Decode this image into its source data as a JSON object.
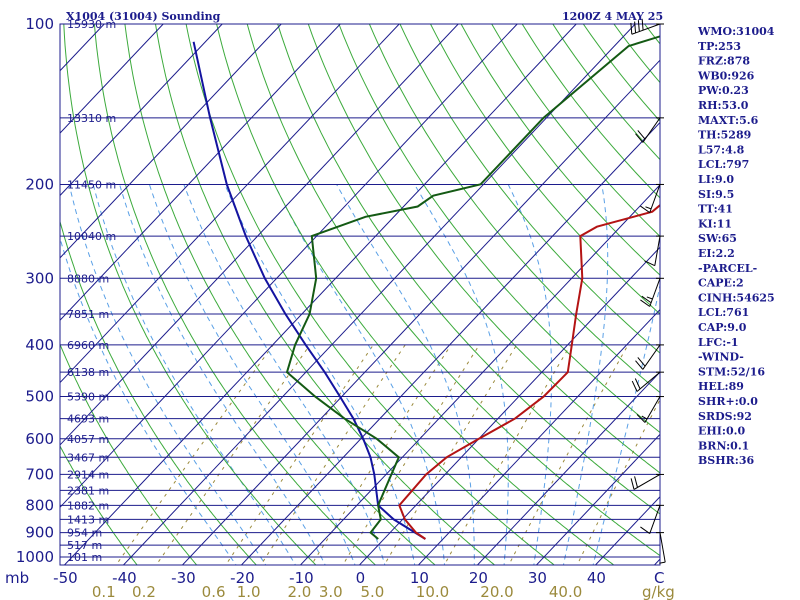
{
  "header": {
    "station_title": "X1004 (31004) Sounding",
    "time_label": "1200Z  4 MAY 25"
  },
  "colors": {
    "frame": "#1c1c8c",
    "isotherm": "#1c1c8c",
    "dry_adiabat": "#3caa3c",
    "moist_adiabat": "#5aa0e6",
    "mixing_ratio": "#9b8a3c",
    "temperature": "#b41414",
    "dewpoint": "#145a14",
    "parcel": "#1414a0",
    "wind": "#000000"
  },
  "chart_data": {
    "type": "skew-t log-p sounding",
    "pressure_axis": {
      "unit": "mb",
      "ticks": [
        100,
        200,
        300,
        400,
        500,
        600,
        700,
        800,
        900,
        1000
      ],
      "range": [
        1050,
        100
      ],
      "scale": "log"
    },
    "temperature_axis": {
      "unit": "C",
      "ticks": [
        -50,
        -40,
        -30,
        -20,
        -10,
        0,
        10,
        20,
        30,
        40
      ],
      "tick_labels": [
        "-50",
        "-40",
        "-30",
        "-20",
        "-10",
        "0",
        "10",
        "20",
        "30",
        "40"
      ],
      "unit_label": "C"
    },
    "mixing_ratio_axis": {
      "unit": "g/kg",
      "labels": [
        "0.1",
        "0.2",
        "0.6",
        "1.0",
        "2.0",
        "3.0",
        "5.0",
        "10.0",
        "20.0",
        "40.0"
      ],
      "values": [
        0.1,
        0.2,
        0.6,
        1.0,
        2.0,
        3.0,
        5.0,
        10.0,
        20.0,
        40.0
      ]
    },
    "height_labels": [
      {
        "p": 100,
        "text": "15930 m"
      },
      {
        "p": 150,
        "text": "13310 m"
      },
      {
        "p": 200,
        "text": "11450 m"
      },
      {
        "p": 250,
        "text": "10040 m"
      },
      {
        "p": 300,
        "text": "8880 m"
      },
      {
        "p": 350,
        "text": "7851 m"
      },
      {
        "p": 400,
        "text": "6960 m"
      },
      {
        "p": 450,
        "text": "6138 m"
      },
      {
        "p": 500,
        "text": "5390 m"
      },
      {
        "p": 550,
        "text": "4693 m"
      },
      {
        "p": 600,
        "text": "4057 m"
      },
      {
        "p": 650,
        "text": "3467 m"
      },
      {
        "p": 700,
        "text": "2914 m"
      },
      {
        "p": 750,
        "text": "2381 m"
      },
      {
        "p": 800,
        "text": "1882 m"
      },
      {
        "p": 850,
        "text": "1413 m"
      },
      {
        "p": 900,
        "text": "954 m"
      },
      {
        "p": 950,
        "text": "517 m"
      },
      {
        "p": 1000,
        "text": "101 m"
      }
    ],
    "temperature": [
      {
        "p": 925,
        "t": 7.0
      },
      {
        "p": 900,
        "t": 4.4
      },
      {
        "p": 850,
        "t": 0.4
      },
      {
        "p": 800,
        "t": -2.8
      },
      {
        "p": 700,
        "t": -3.2
      },
      {
        "p": 650,
        "t": -2.5
      },
      {
        "p": 600,
        "t": 0.0
      },
      {
        "p": 550,
        "t": 2.9
      },
      {
        "p": 500,
        "t": 4.2
      },
      {
        "p": 450,
        "t": 4.4
      },
      {
        "p": 400,
        "t": 0.7
      },
      {
        "p": 350,
        "t": -3.5
      },
      {
        "p": 300,
        "t": -8.2
      },
      {
        "p": 250,
        "t": -15.3
      },
      {
        "p": 240,
        "t": -14.0
      },
      {
        "p": 225,
        "t": -7.0
      },
      {
        "p": 215,
        "t": -6.6
      },
      {
        "p": 209,
        "t": -5.2
      },
      {
        "p": 200,
        "t": -2.2
      },
      {
        "p": 150,
        "t": 7.1
      },
      {
        "p": 100,
        "t": 24.5
      }
    ],
    "dewpoint": [
      {
        "p": 925,
        "t": -1.0
      },
      {
        "p": 900,
        "t": -3.3
      },
      {
        "p": 850,
        "t": -3.7
      },
      {
        "p": 800,
        "t": -6.4
      },
      {
        "p": 700,
        "t": -9.1
      },
      {
        "p": 650,
        "t": -10.6
      },
      {
        "p": 600,
        "t": -17.3
      },
      {
        "p": 550,
        "t": -26.0
      },
      {
        "p": 500,
        "t": -34.5
      },
      {
        "p": 450,
        "t": -43.2
      },
      {
        "p": 400,
        "t": -46.2
      },
      {
        "p": 350,
        "t": -48.7
      },
      {
        "p": 300,
        "t": -53.3
      },
      {
        "p": 250,
        "t": -60.8
      },
      {
        "p": 230,
        "t": -54.8
      },
      {
        "p": 220,
        "t": -47.6
      },
      {
        "p": 210,
        "t": -46.7
      },
      {
        "p": 200,
        "t": -40.5
      },
      {
        "p": 150,
        "t": -40.5
      },
      {
        "p": 110,
        "t": -37.6
      },
      {
        "p": 100,
        "t": -29.0
      }
    ],
    "parcel": [
      {
        "p": 925,
        "t": 7.0
      },
      {
        "p": 850,
        "t": -1.5
      },
      {
        "p": 800,
        "t": -6.4
      },
      {
        "p": 700,
        "t": -12.0
      },
      {
        "p": 650,
        "t": -15.4
      },
      {
        "p": 600,
        "t": -19.6
      },
      {
        "p": 550,
        "t": -24.5
      },
      {
        "p": 500,
        "t": -30.3
      },
      {
        "p": 450,
        "t": -36.8
      },
      {
        "p": 400,
        "t": -44.4
      },
      {
        "p": 350,
        "t": -52.8
      },
      {
        "p": 300,
        "t": -62.0
      },
      {
        "p": 250,
        "t": -72.0
      },
      {
        "p": 200,
        "t": -83.5
      },
      {
        "p": 150,
        "t": -97.0
      },
      {
        "p": 108,
        "t": -112.0
      }
    ],
    "wind_barbs": [
      {
        "p": 100,
        "dir": 250,
        "kt": 40
      },
      {
        "p": 150,
        "dir": 215,
        "kt": 20
      },
      {
        "p": 200,
        "dir": 200,
        "kt": 15
      },
      {
        "p": 250,
        "dir": 190,
        "kt": 10
      },
      {
        "p": 300,
        "dir": 200,
        "kt": 25
      },
      {
        "p": 400,
        "dir": 215,
        "kt": 20
      },
      {
        "p": 450,
        "dir": 230,
        "kt": 20
      },
      {
        "p": 500,
        "dir": 210,
        "kt": 15
      },
      {
        "p": 700,
        "dir": 240,
        "kt": 20
      },
      {
        "p": 800,
        "dir": 200,
        "kt": 10
      },
      {
        "p": 900,
        "dir": 170,
        "kt": 5
      }
    ],
    "indices": [
      "WMO:31004",
      "TP:253",
      "FRZ:878",
      "WB0:926",
      "PW:0.23",
      "RH:53.0",
      "MAXT:5.6",
      "TH:5289",
      "L57:4.8",
      "LCL:797",
      "LI:9.0",
      "SI:9.5",
      "TT:41",
      "KI:11",
      "SW:65",
      "EI:2.2",
      "-PARCEL-",
      "CAPE:2",
      "CINH:54625",
      "LCL:761",
      "CAP:9.0",
      "LFC:-1",
      "-WIND-",
      "STM:52/16",
      "HEL:89",
      "SHR+:0.0",
      "SRDS:92",
      "EHI:0.0",
      "BRN:0.1",
      "BSHR:36"
    ]
  }
}
